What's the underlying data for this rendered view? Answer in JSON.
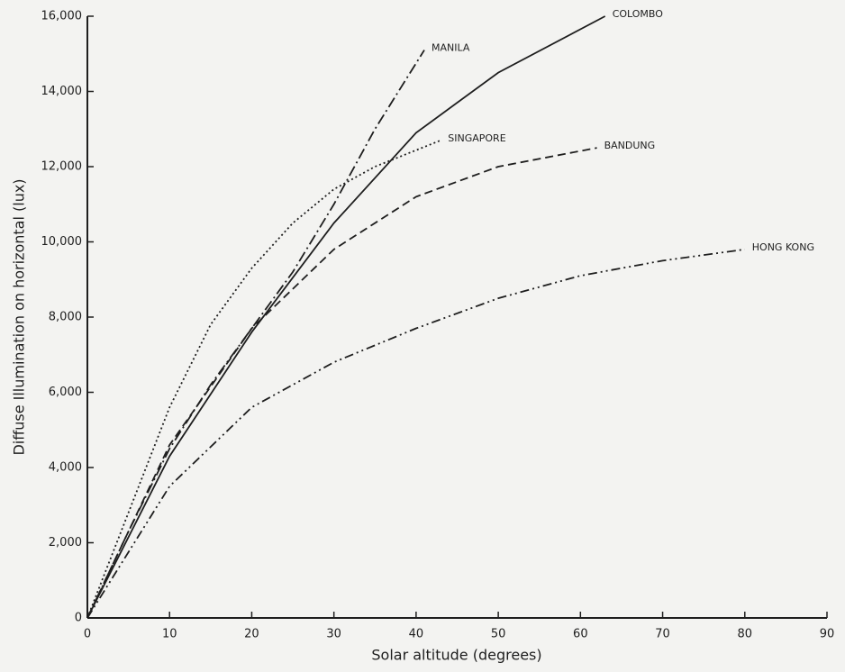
{
  "chart_data": {
    "type": "line",
    "x_label": "Solar altitude (degrees)",
    "y_label": "Diffuse Illumination on horizontal (lux)",
    "xlim": [
      0,
      90
    ],
    "xticks": [
      0,
      10,
      20,
      30,
      40,
      50,
      60,
      70,
      80,
      90
    ],
    "ylim": [
      0,
      16000
    ],
    "yticks": [
      0,
      {
        "value": 2000,
        "label": "2,000"
      },
      {
        "value": 4000,
        "label": "4,000"
      },
      {
        "value": 6000,
        "label": "6,000"
      },
      {
        "value": 8000,
        "label": "8,000"
      },
      {
        "value": 10000,
        "label": "10,000"
      },
      {
        "value": 12000,
        "label": "12,000"
      },
      {
        "value": 14000,
        "label": "14,000"
      },
      {
        "value": 16000,
        "label": "16,000"
      }
    ],
    "grid": false,
    "series": [
      {
        "name": "MANILA",
        "color": "#1e1e1e",
        "x": [
          0,
          5,
          10,
          15,
          20,
          25,
          30,
          35,
          41
        ],
        "values": [
          0,
          2300,
          4500,
          6200,
          7700,
          9200,
          11000,
          13000,
          15100
        ]
      },
      {
        "name": "COLOMBO",
        "color": "#1e1e1e",
        "x": [
          0,
          10,
          20,
          30,
          40,
          50,
          63
        ],
        "values": [
          0,
          4300,
          7600,
          10500,
          12900,
          14500,
          16000
        ]
      },
      {
        "name": "SINGAPORE",
        "color": "#1e1e1e",
        "x": [
          0,
          5,
          10,
          15,
          20,
          25,
          30,
          35,
          43
        ],
        "values": [
          0,
          2800,
          5600,
          7800,
          9300,
          10500,
          11400,
          12000,
          12700
        ]
      },
      {
        "name": "BANDUNG",
        "color": "#1e1e1e",
        "x": [
          0,
          10,
          20,
          30,
          40,
          50,
          62
        ],
        "values": [
          0,
          4600,
          7700,
          9800,
          11200,
          12000,
          12500
        ]
      },
      {
        "name": "HONG KONG",
        "color": "#1e1e1e",
        "x": [
          0,
          10,
          20,
          30,
          40,
          50,
          60,
          70,
          80
        ],
        "values": [
          0,
          3500,
          5600,
          6800,
          7700,
          8500,
          9100,
          9500,
          9800
        ]
      }
    ]
  }
}
